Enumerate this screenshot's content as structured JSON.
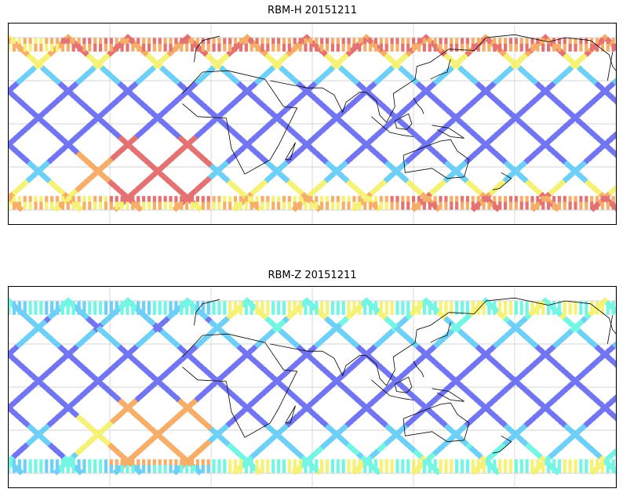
{
  "panels": [
    {
      "title": "RBM-H 20151211",
      "colormap": "jet",
      "high_lat_intensity": "high"
    },
    {
      "title": "RBM-Z 20151211",
      "colormap": "jet",
      "high_lat_intensity": "moderate"
    }
  ],
  "map": {
    "projection": "equirectangular",
    "central_longitude": 60,
    "lon_range": [
      -120,
      240
    ],
    "lat_range": [
      -60,
      60
    ],
    "gridlines": true,
    "coastlines": true
  },
  "colors": {
    "low": "#5a5ef0",
    "mid": "#55c8f5",
    "cyan": "#5ef5e0",
    "yellow": "#f5f060",
    "orange": "#f5a050",
    "red": "#e05a5a",
    "grid": "#c8c8c8",
    "coast": "#000000"
  }
}
